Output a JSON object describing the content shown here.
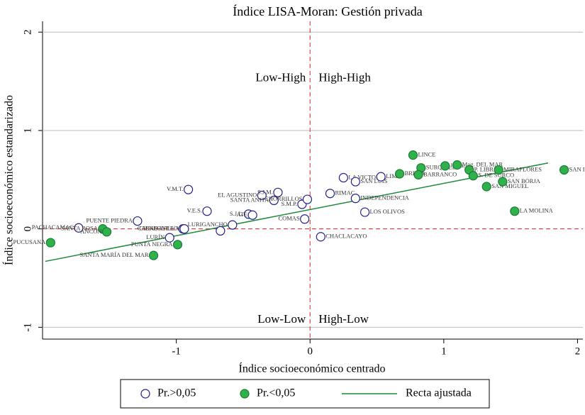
{
  "chart_data": {
    "type": "scatter",
    "title": "Índice LISA-Moran: Gestión privada",
    "x_label": "Índice socioeconómico centrado",
    "y_label": "Índice socioeconómico estandarizado",
    "xlim": [
      -2.0,
      2.04
    ],
    "ylim": [
      -1.12,
      2.11
    ],
    "xticks": [
      -1,
      0,
      1,
      2
    ],
    "yticks": [
      -1,
      0,
      1,
      2
    ],
    "grid": true,
    "quadrant_labels": [
      "Low-High",
      "High-High",
      "Low-Low",
      "High-Low"
    ],
    "series": [
      {
        "name": "Pr.>0,05",
        "color": "#1f1f8a",
        "filled": false,
        "x": [
          -1.29,
          -1.73,
          -1.05,
          -0.95,
          -0.94,
          -0.91,
          -0.77,
          -0.58,
          -0.67,
          -0.46,
          -0.43,
          -0.36,
          -0.24,
          -0.27,
          -0.06,
          -0.02,
          -0.04,
          0.08,
          0.41,
          0.25,
          0.34,
          0.15,
          0.34,
          0.53
        ],
        "values": [
          0.08,
          0.01,
          -0.09,
          0.0,
          0.0,
          0.4,
          0.18,
          0.04,
          -0.02,
          0.15,
          0.14,
          0.34,
          0.37,
          0.29,
          0.25,
          0.3,
          0.1,
          -0.08,
          0.17,
          0.52,
          0.48,
          0.36,
          0.31,
          0.53
        ],
        "labels": [
          "PUENTE PIEDRA",
          "PACHACAMAC",
          "LURÍN",
          "CARABAYLLO",
          "CIENEGUILLA",
          "V.M.T.",
          "V.E.S.",
          "LURIGANCHO",
          null,
          "S.J.L.",
          "ATE",
          "EL AGUSTINO",
          "S.J.M.",
          "SANTA ANITA",
          "S.M.P.",
          "CHORRILLOS",
          "COMAS",
          "CHACLACAYO",
          "LOS OLIVOS",
          "LA VICTORIA",
          "SAN LUIS",
          "RIMAC",
          "INDEPENDENCIA",
          "LIMA"
        ]
      },
      {
        "name": "Pr.<0,05",
        "color": "#2fb24c",
        "filled": true,
        "x": [
          -1.94,
          -1.55,
          -1.52,
          -1.17,
          -0.99,
          0.77,
          0.83,
          1.01,
          1.1,
          1.19,
          0.67,
          0.81,
          1.22,
          1.41,
          1.32,
          1.44,
          1.9,
          1.53
        ],
        "values": [
          -0.14,
          0.0,
          -0.03,
          -0.27,
          -0.16,
          0.75,
          0.62,
          0.64,
          0.65,
          0.6,
          0.56,
          0.55,
          0.54,
          0.6,
          0.43,
          0.48,
          0.6,
          0.18
        ],
        "labels": [
          "PUCUSANA",
          "SANTA ROSA",
          "ANCON",
          "SANTA MARÍA DEL MAR",
          "PUNTA NEGRA",
          "LINCE",
          "SURQUILLO",
          "J. Ma.",
          "Mag. DEL MAR",
          "P. LIBRE",
          "BREÑA",
          "BARRANCO",
          "S. DE SURCO",
          "MIRAFLORES",
          "SAN MIGUEL",
          "SAN BORJA",
          "SAN ISIDRO",
          "LA MOLINA"
        ]
      }
    ],
    "fit": {
      "name": "Recta ajustada",
      "color": "#1e8a3c",
      "x": [
        -1.98,
        1.78
      ],
      "values": [
        -0.33,
        0.67
      ]
    }
  }
}
